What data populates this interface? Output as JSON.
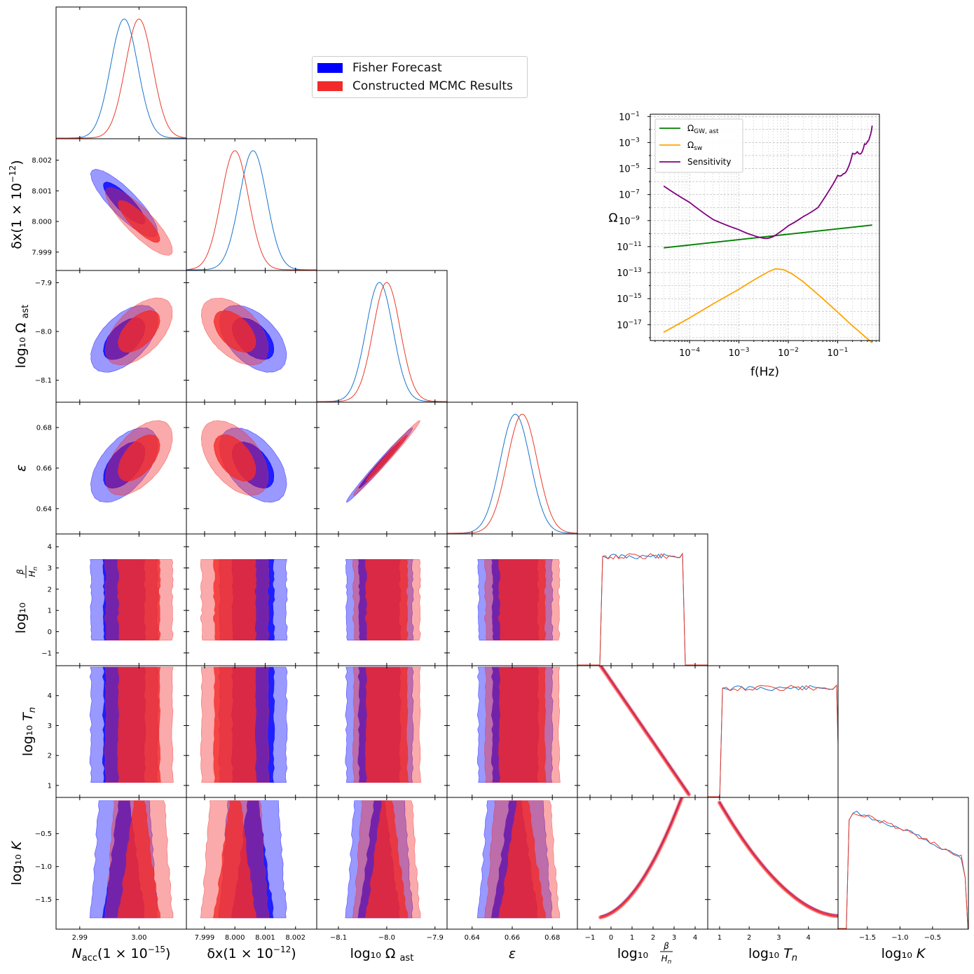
{
  "figure": {
    "legend": [
      {
        "label": "Fisher Forecast",
        "color": "#0000ff"
      },
      {
        "label": "Constructed MCMC Results",
        "color": "#f22a2a"
      }
    ],
    "fisher_color": "#0000ff",
    "mcmc_color": "#f22a2a",
    "fisher_line_color": "#1874cd",
    "mcmc_line_color": "#e83a2a"
  },
  "chart_data": [
    {
      "type": "corner",
      "parameters": [
        {
          "name": "N_acc",
          "xlabel": "N_acc(1 × 10^-15)",
          "xlabel_main": "N",
          "xlabel_sub": "acc",
          "xlabel_tail": "(1 × 10",
          "xlabel_exp": "−15",
          "xlabel_close": ")",
          "range": [
            2.986,
            3.008
          ],
          "ticks": [
            "2.99",
            "3.00"
          ],
          "tick_values": [
            2.99,
            3.0
          ],
          "fisher_mean": 2.9975,
          "mcmc_mean": 3.0,
          "sigma": 0.0023
        },
        {
          "name": "dx",
          "xlabel": "δx(1 × 10^-12)",
          "ylabel_main": "δx(1 × 10",
          "ylabel_exp": "−12",
          "ylabel_close": ")",
          "range": [
            7.9984,
            8.0027
          ],
          "ticks": [
            "7.999",
            "8.000",
            "8.001",
            "8.002"
          ],
          "tick_values": [
            7.999,
            8.0,
            8.001,
            8.002
          ],
          "fisher_mean": 8.0006,
          "mcmc_mean": 8.0,
          "sigma": 0.00045
        },
        {
          "name": "log10_Omega_ast",
          "label_text": "log₁₀ Ω",
          "label_sub": "ast",
          "range": [
            -8.145,
            -7.875
          ],
          "ticks": [
            "−8.1",
            "−8.0",
            "−7.9"
          ],
          "tick_values": [
            -8.1,
            -8.0,
            -7.9
          ],
          "fisher_mean": -8.015,
          "mcmc_mean": -8.0,
          "sigma": 0.028
        },
        {
          "name": "epsilon",
          "label_text": "ε",
          "range": [
            0.6275,
            0.6925
          ],
          "ticks": [
            "0.64",
            "0.66",
            "0.68"
          ],
          "tick_values": [
            0.64,
            0.66,
            0.68
          ],
          "fisher_mean": 0.6615,
          "mcmc_mean": 0.665,
          "sigma": 0.0075
        },
        {
          "name": "log10_beta_Hn",
          "label_text": "log₁₀",
          "range": [
            -1.6,
            4.6
          ],
          "ticks": [
            "−1",
            "0",
            "1",
            "2",
            "3",
            "4"
          ],
          "tick_values": [
            -1,
            0,
            1,
            2,
            3,
            4
          ],
          "uniform": [
            -0.4,
            3.4
          ]
        },
        {
          "name": "log10_Tn",
          "label_text": "log₁₀ T",
          "label_sub": "n",
          "range": [
            0.6,
            5.0
          ],
          "ticks": [
            "1",
            "2",
            "3",
            "4"
          ],
          "tick_values": [
            1,
            2,
            3,
            4
          ],
          "uniform": [
            1.1,
            4.95
          ]
        },
        {
          "name": "log10_K",
          "label_text": "log₁₀ K",
          "range": [
            -1.95,
            0.05
          ],
          "ticks": [
            "−1.5",
            "−1.0",
            "−0.5"
          ],
          "tick_values": [
            -1.5,
            -1.0,
            -0.5
          ],
          "uniform": [
            -1.78,
            0.0
          ]
        }
      ],
      "diag_labels": {
        "beta_num": "β",
        "beta_den": "H",
        "beta_den_sub": "n"
      },
      "correlations": [
        [
          1,
          -0.85,
          0.55,
          0.55,
          0,
          0,
          0
        ],
        [
          -0.85,
          1,
          -0.5,
          -0.5,
          0,
          0,
          0
        ],
        [
          0.55,
          -0.5,
          1,
          0.99,
          0,
          0,
          0
        ],
        [
          0.55,
          -0.5,
          0.99,
          1,
          0,
          0,
          0
        ]
      ],
      "derived_relations": {
        "log10_Tn_vs_log10_beta_Hn": "log10_Tn ≈ 4.95 − 1.05·(log10_beta_Hn + 0.45)",
        "log10_K_vs_log10_beta_Hn": "curved rising band from (-0.5, -1.77) to (3.3, 0.0)",
        "log10_K_vs_log10_Tn": "curved falling band from (1.0, 0.0) to (5.0, -1.75)"
      }
    },
    {
      "type": "line",
      "title": "",
      "xlabel": "f(Hz)",
      "ylabel": "Ω",
      "xscale": "log",
      "yscale": "log",
      "xlim": [
        1.6e-05,
        0.7
      ],
      "ylim": [
        6e-19,
        0.15
      ],
      "xticks": [
        {
          "v": -4,
          "base": "10",
          "exp": "−4"
        },
        {
          "v": -3,
          "base": "10",
          "exp": "−3"
        },
        {
          "v": -2,
          "base": "10",
          "exp": "−2"
        },
        {
          "v": -1,
          "base": "10",
          "exp": "−1"
        }
      ],
      "yticks": [
        {
          "v": -1,
          "base": "10",
          "exp": "−1"
        },
        {
          "v": -3,
          "base": "10",
          "exp": "−3"
        },
        {
          "v": -5,
          "base": "10",
          "exp": "−5"
        },
        {
          "v": -7,
          "base": "10",
          "exp": "−7"
        },
        {
          "v": -9,
          "base": "10",
          "exp": "−9"
        },
        {
          "v": -11,
          "base": "10",
          "exp": "−11"
        },
        {
          "v": -13,
          "base": "10",
          "exp": "−13"
        },
        {
          "v": -15,
          "base": "10",
          "exp": "−15"
        },
        {
          "v": -17,
          "base": "10",
          "exp": "−17"
        }
      ],
      "grid": true,
      "legend_position": "upper-left",
      "series": [
        {
          "name": "Ω_GW,ast",
          "label_main": "Ω",
          "label_sub": "GW, ast",
          "color": "#008000",
          "x": [
            3e-05,
            0.5
          ],
          "y": [
            8e-12,
            4.5e-10
          ]
        },
        {
          "name": "Ω_sw",
          "label_main": "Ω",
          "label_sub": "sw",
          "color": "#ffa500",
          "x": [
            3e-05,
            0.0001,
            0.0003,
            0.001,
            0.002,
            0.004,
            0.0055,
            0.008,
            0.012,
            0.02,
            0.05,
            0.1,
            0.2,
            0.5
          ],
          "y": [
            2.6e-18,
            3.3e-17,
            4e-16,
            5.2e-15,
            2.7e-14,
            1.2e-13,
            1.95e-13,
            1.7e-13,
            8e-14,
            2e-14,
            1e-15,
            9e-17,
            8e-18,
            4e-19
          ]
        },
        {
          "name": "Sensitivity",
          "label_main": "Sensitivity",
          "color": "#800080",
          "x": [
            3e-05,
            0.0001,
            0.0003,
            0.001,
            0.002,
            0.0035,
            0.005,
            0.01,
            0.02,
            0.04,
            0.08,
            0.1,
            0.13,
            0.16,
            0.2,
            0.25,
            0.3,
            0.35,
            0.4,
            0.45,
            0.5
          ],
          "y": [
            4.5e-07,
            2.5e-08,
            1.2e-09,
            2e-10,
            7e-11,
            4.2e-11,
            6e-11,
            4e-10,
            2e-09,
            1e-08,
            6e-07,
            3e-06,
            4e-06,
            1e-05,
            0.00015,
            0.0002,
            0.00015,
            0.0008,
            0.0012,
            0.003,
            0.02
          ]
        }
      ]
    }
  ]
}
